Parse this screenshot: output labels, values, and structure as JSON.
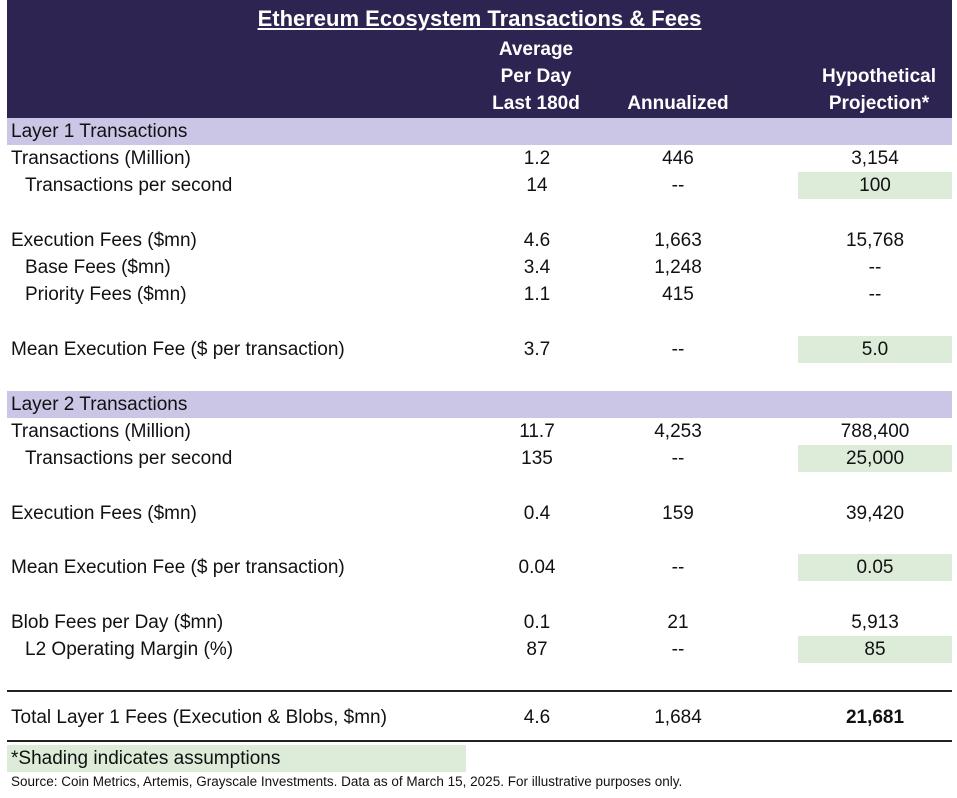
{
  "chart_data": {
    "type": "table",
    "title": "Ethereum Ecosystem Transactions & Fees",
    "columns": {
      "avg_per_day": [
        "Average",
        "Per Day",
        "Last 180d"
      ],
      "annualized": "Annualized",
      "projection": [
        "Hypothetical",
        "Projection*"
      ]
    },
    "sections": [
      {
        "title": "Layer 1 Transactions",
        "rows": [
          {
            "label": "Transactions (Million)",
            "avg": "1.2",
            "annual": "446",
            "proj": "3,154",
            "shaded": false
          },
          {
            "label": "Transactions per second",
            "avg": "14",
            "annual": "--",
            "proj": "100",
            "shaded": true
          },
          {
            "label": "Execution Fees ($mn)",
            "avg": "4.6",
            "annual": "1,663",
            "proj": "15,768",
            "shaded": false
          },
          {
            "label": "Base Fees ($mn)",
            "avg": "3.4",
            "annual": "1,248",
            "proj": "--",
            "shaded": false
          },
          {
            "label": "Priority Fees ($mn)",
            "avg": "1.1",
            "annual": "415",
            "proj": "--",
            "shaded": false
          },
          {
            "label": "Mean Execution Fee ($ per transaction)",
            "avg": "3.7",
            "annual": "--",
            "proj": "5.0",
            "shaded": true
          }
        ]
      },
      {
        "title": "Layer 2 Transactions",
        "rows": [
          {
            "label": "Transactions (Million)",
            "avg": "11.7",
            "annual": "4,253",
            "proj": "788,400",
            "shaded": false
          },
          {
            "label": "Transactions per second",
            "avg": "135",
            "annual": "--",
            "proj": "25,000",
            "shaded": true
          },
          {
            "label": "Execution Fees ($mn)",
            "avg": "0.4",
            "annual": "159",
            "proj": "39,420",
            "shaded": false
          },
          {
            "label": "Mean Execution Fee ($ per transaction)",
            "avg": "0.04",
            "annual": "--",
            "proj": "0.05",
            "shaded": true
          },
          {
            "label": "Blob Fees per Day ($mn)",
            "avg": "0.1",
            "annual": "21",
            "proj": "5,913",
            "shaded": false
          },
          {
            "label": "L2 Operating Margin (%)",
            "avg": "87",
            "annual": "--",
            "proj": "85",
            "shaded": true
          }
        ]
      }
    ],
    "total": {
      "label": "Total Layer 1 Fees (Execution & Blobs, $mn)",
      "avg": "4.6",
      "annual": "1,684",
      "proj": "21,681"
    },
    "note": "*Shading indicates assumptions",
    "source": "Source: Coin Metrics, Artemis, Grayscale Investments. Data as of March 15, 2025. For illustrative purposes only."
  },
  "colors": {
    "header_bg": "#2d2451",
    "section_bg": "#cbc5e6",
    "assumption_shade": "#dcecd9"
  }
}
